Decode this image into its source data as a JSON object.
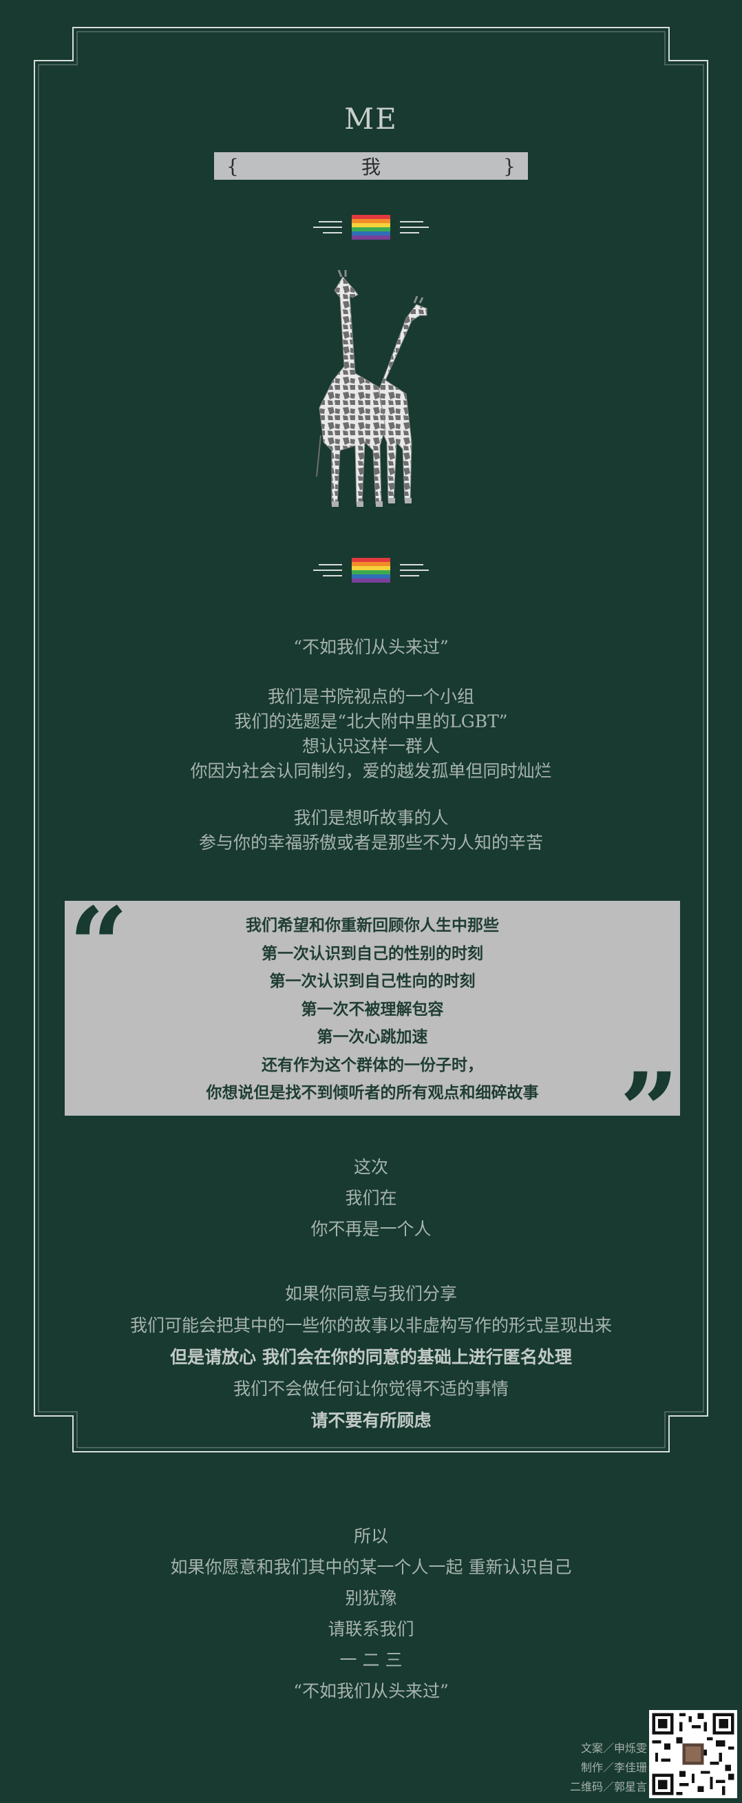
{
  "header": {
    "title": "ME",
    "subtitle_open": "{",
    "subtitle": "我",
    "subtitle_close": "}"
  },
  "intro": {
    "quote": "“不如我们从头来过”",
    "lines": [
      "我们是书院视点的一个小组",
      "我们的选题是“北大附中里的LGBT”",
      "想认识这样一群人",
      "你因为社会认同制约，爱的越发孤单但同时灿烂"
    ],
    "lines2": [
      "我们是想听故事的人",
      "参与你的幸福骄傲或者是那些不为人知的辛苦"
    ]
  },
  "quote_box": {
    "open_mark": "“",
    "close_mark": "”",
    "lines": [
      "我们希望和你重新回顾你人生中那些",
      "第一次认识到自己的性别的时刻",
      "第一次认识到自己性向的时刻",
      "第一次不被理解包容",
      "第一次心跳加速",
      "还有作为这个群体的一份子时，",
      "你想说但是找不到倾听者的所有观点和细碎故事"
    ]
  },
  "middle": {
    "lines": [
      "这次",
      "我们在",
      "你不再是一个人"
    ],
    "share": [
      "如果你同意与我们分享",
      "我们可能会把其中的一些你的故事以非虚构写作的形式呈现出来",
      "但是请放心 我们会在你的同意的基础上进行匿名处理",
      "我们不会做任何让你觉得不适的事情",
      "请不要有所顾虑"
    ]
  },
  "closing": {
    "lines": [
      "所以",
      "如果你愿意和我们其中的某一个人一起 重新认识自己",
      "别犹豫",
      "请联系我们",
      "一 二 三",
      "“不如我们从头来过”"
    ]
  },
  "credits": [
    "文案／申烁雯",
    "制作／李佳珊",
    "二维码／郭星言"
  ],
  "icons": {
    "flag": "rainbow-flag-icon",
    "art": "giraffes-illustration",
    "qr": "qr-code"
  },
  "colors": {
    "background": "#183A30",
    "frame": "#D9DEDB",
    "quote_box": "#BDBDBD"
  }
}
